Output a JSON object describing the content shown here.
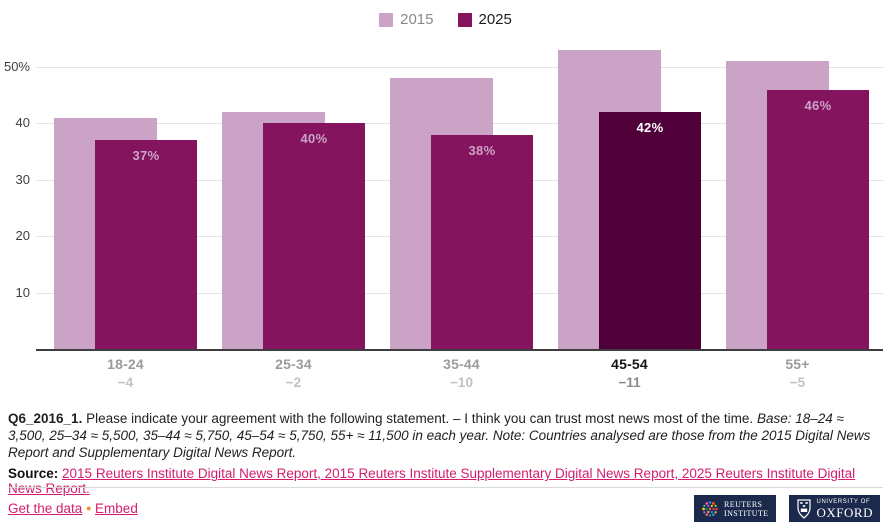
{
  "legend": {
    "items": [
      {
        "label": "2015",
        "color": "#cba3c6"
      },
      {
        "label": "2025",
        "color": "#84145e"
      }
    ]
  },
  "chart_data": {
    "type": "bar",
    "title": "",
    "categories": [
      "18-24",
      "25-34",
      "35-44",
      "45-54",
      "55+"
    ],
    "series": [
      {
        "name": "2015",
        "color": "#cba3c6",
        "values": [
          41,
          42,
          48,
          53,
          51
        ]
      },
      {
        "name": "2025",
        "color": "#84145e",
        "values": [
          37,
          40,
          38,
          42,
          46
        ]
      }
    ],
    "value_labels": [
      "37%",
      "40%",
      "38%",
      "42%",
      "46%"
    ],
    "category_deltas": [
      "−4",
      "−2",
      "−10",
      "−11",
      "−5"
    ],
    "highlighted_category": "45-54",
    "highlight_color": "#500038",
    "y_ticks": [
      {
        "value": 50,
        "label": "50%"
      },
      {
        "value": 40,
        "label": "40"
      },
      {
        "value": 30,
        "label": "30"
      },
      {
        "value": 20,
        "label": "20"
      },
      {
        "value": 10,
        "label": "10"
      }
    ],
    "ylim": [
      0,
      54
    ],
    "grid": "horizontal",
    "legend_position": "top-center"
  },
  "footnote": {
    "question_id": "Q6_2016_1.",
    "question_text": "Please indicate your agreement with the following statement. – I think you can trust most news most of the time.",
    "base_note": "Base: 18–24 ≈ 3,500, 25–34 ≈ 5,500, 35–44 ≈ 5,750, 45–54 ≈ 5,750, 55+ ≈ 11,500 in each year. Note: Countries analysed are those from the 2015 Digital News Report and Supplementary Digital News Report."
  },
  "source": {
    "label": "Source:",
    "link_text": "2015 Reuters Institute Digital News Report, 2015 Reuters Institute Supplementary Digital News Report, 2025 Reuters Institute Digital News Report."
  },
  "footer": {
    "get_data_label": "Get the data",
    "separator": "•",
    "embed_label": "Embed"
  },
  "logos": {
    "reuters": {
      "line1": "REUTERS",
      "line2": "INSTITUTE"
    },
    "oxford": {
      "line1": "UNIVERSITY OF",
      "line2": "OXFORD"
    }
  },
  "colors": {
    "accent_link": "#d41d6d",
    "bullet_orange": "#f08b1f",
    "logo_navy": "#1b2a4c",
    "gridline": "#e4e4e4"
  }
}
